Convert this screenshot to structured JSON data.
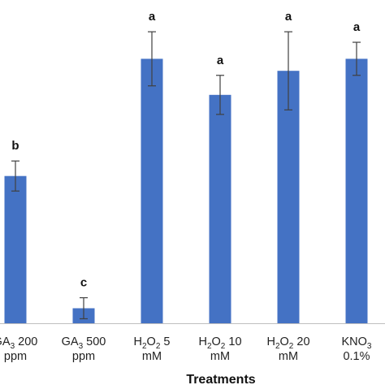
{
  "chart_data": {
    "type": "bar",
    "xlabel": "Treatments",
    "ylabel": "",
    "ylim": [
      0,
      100
    ],
    "grid": false,
    "legend": "none",
    "bar_color": "#4472C4",
    "error_color": "#404040",
    "axis_color": "#bfbfbf",
    "categories": [
      {
        "lines": [
          [
            "GA",
            "3",
            " 200"
          ],
          [
            "ppm"
          ]
        ]
      },
      {
        "lines": [
          [
            "GA",
            "3",
            " 500"
          ],
          [
            "ppm"
          ]
        ]
      },
      {
        "lines": [
          [
            "H",
            "2",
            "O",
            "2",
            " 5"
          ],
          [
            "mM"
          ]
        ]
      },
      {
        "lines": [
          [
            "H",
            "2",
            "O",
            "2",
            " 10"
          ],
          [
            "mM"
          ]
        ]
      },
      {
        "lines": [
          [
            "H",
            "2",
            "O",
            "2",
            " 20"
          ],
          [
            "mM"
          ]
        ]
      },
      {
        "lines": [
          [
            "KNO",
            "3"
          ],
          [
            "0.1%"
          ]
        ]
      }
    ],
    "values": [
      49,
      5,
      88,
      76,
      84,
      88
    ],
    "errors": [
      5,
      3.5,
      9,
      6.5,
      13,
      5.5
    ],
    "significance": [
      "b",
      "c",
      "a",
      "a",
      "a",
      "a"
    ]
  }
}
